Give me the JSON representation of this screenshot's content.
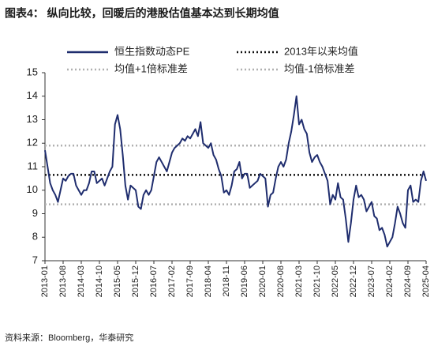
{
  "chart_data": {
    "type": "line",
    "title": "图表4： 纵向比较，回暖后的港股估值基本达到长期均值",
    "source": "资料来源：Bloomberg，华泰研究",
    "categories": [
      "2013-01",
      null,
      null,
      null,
      null,
      null,
      null,
      "2013-08",
      null,
      null,
      null,
      null,
      null,
      null,
      "2014-03",
      null,
      null,
      null,
      null,
      null,
      null,
      "2014-10",
      null,
      null,
      null,
      null,
      null,
      null,
      "2015-05",
      null,
      null,
      null,
      null,
      null,
      null,
      "2015-12",
      null,
      null,
      null,
      null,
      null,
      null,
      "2016-07",
      null,
      null,
      null,
      null,
      null,
      null,
      "2017-02",
      null,
      null,
      null,
      null,
      null,
      null,
      "2017-09",
      null,
      null,
      null,
      null,
      null,
      null,
      "2018-04",
      null,
      null,
      null,
      null,
      null,
      null,
      "2018-11",
      null,
      null,
      null,
      null,
      null,
      null,
      "2019-06",
      null,
      null,
      null,
      null,
      null,
      null,
      "2020-01",
      null,
      null,
      null,
      null,
      null,
      null,
      "2020-08",
      null,
      null,
      null,
      null,
      null,
      null,
      "2021-03",
      null,
      null,
      null,
      null,
      null,
      null,
      "2021-10",
      null,
      null,
      null,
      null,
      null,
      null,
      "2022-05",
      null,
      null,
      null,
      null,
      null,
      null,
      "2022-12",
      null,
      null,
      null,
      null,
      null,
      null,
      "2023-07",
      null,
      null,
      null,
      null,
      null,
      null,
      "2024-02",
      null,
      null,
      null,
      null,
      null,
      null,
      "2024-09",
      null,
      null,
      null,
      null,
      null,
      null,
      "2025-04"
    ],
    "series": [
      {
        "name": "恒生指数动态PE",
        "color": "#1f2d6e",
        "values": [
          11.7,
          11,
          10.3,
          10,
          9.8,
          9.5,
          10,
          10.5,
          10.4,
          10.6,
          10.7,
          10.7,
          10.2,
          10,
          9.8,
          10,
          10,
          10.3,
          10.8,
          10.8,
          10.3,
          10.4,
          10.5,
          10.2,
          10.5,
          10.8,
          11,
          12.8,
          13.2,
          12.6,
          11.5,
          10.2,
          9.6,
          10.2,
          10.1,
          10,
          9.3,
          9.2,
          9.8,
          10,
          9.8,
          10,
          10.6,
          11.2,
          11.4,
          11.2,
          11,
          10.8,
          11.2,
          11.6,
          11.8,
          11.9,
          12,
          12.2,
          12.1,
          12.3,
          12.2,
          12.4,
          12.6,
          12.3,
          12.9,
          12,
          11.9,
          11.8,
          12,
          11.5,
          11.3,
          10.9,
          10.6,
          9.9,
          10,
          9.8,
          10.2,
          10.8,
          10.9,
          11.2,
          10.5,
          10.7,
          10.7,
          10.1,
          10.2,
          10.3,
          10.4,
          10.7,
          10.6,
          10.5,
          9.3,
          9.8,
          9.9,
          10.5,
          11,
          11.2,
          11,
          11.3,
          12,
          12.5,
          13.2,
          14,
          12.8,
          13,
          12.6,
          12.4,
          11.6,
          11.2,
          11.4,
          11.5,
          11.2,
          11,
          10.7,
          10.4,
          9.4,
          9.8,
          9.6,
          10.3,
          9.7,
          9.6,
          8.8,
          7.8,
          8.6,
          9.6,
          10.2,
          9.7,
          9.8,
          9.6,
          9.1,
          9.3,
          9.5,
          8.9,
          8.8,
          8.3,
          8.4,
          8.1,
          7.6,
          7.8,
          8,
          8.6,
          9.3,
          9,
          8.6,
          8.4,
          10,
          10.2,
          9.5,
          9.6,
          9.5,
          10.4,
          10.8,
          10.4
        ]
      }
    ],
    "reference_lines": [
      {
        "name": "2013年以来均值",
        "value": 10.65,
        "color": "#111111"
      },
      {
        "name": "均值+1倍标准差",
        "value": 11.9,
        "color": "#b0b0b0"
      },
      {
        "name": "均值-1倍标准差",
        "value": 9.4,
        "color": "#b0b0b0"
      }
    ],
    "ylim": [
      7,
      15
    ],
    "yticks": [
      7,
      8,
      9,
      10,
      11,
      12,
      13,
      14,
      15
    ]
  }
}
